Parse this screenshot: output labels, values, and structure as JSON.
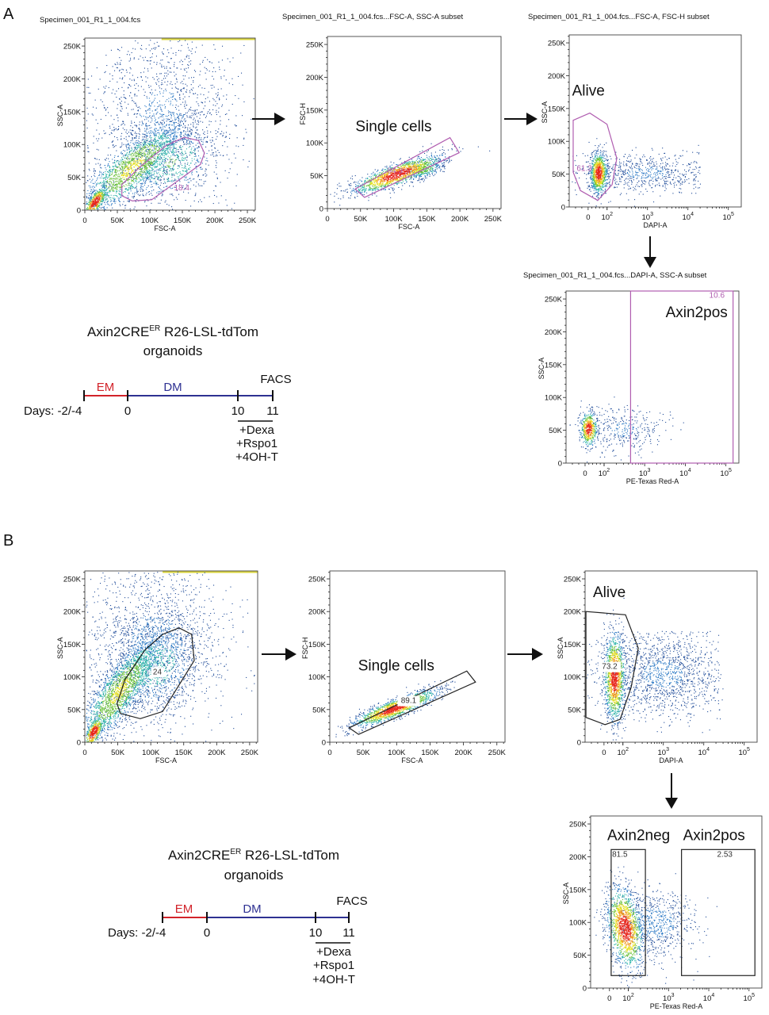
{
  "panels": [
    {
      "letter": "A",
      "protocol": {
        "title_main": "Axin2CRE",
        "title_sup": "ER",
        "title_rest": " R26-LSL-tdTom",
        "title_line2": "organoids",
        "days_label": "Days: -2/-4",
        "day0": "0",
        "day10": "10",
        "day11": "11",
        "em_label": "EM",
        "dm_label": "DM",
        "facs_label": "FACS",
        "treatments": [
          "+Dexa",
          "+Rspo1",
          "+4OH-T"
        ],
        "em_color": "#d2232a",
        "dm_color": "#2e3192"
      }
    },
    {
      "letter": "B",
      "protocol": {
        "title_main": "Axin2CRE",
        "title_sup": "ER",
        "title_rest": " R26-LSL-tdTom",
        "title_line2": "organoids",
        "days_label": "Days: -2/-4",
        "day0": "0",
        "day10": "10",
        "day11": "11",
        "em_label": "EM",
        "dm_label": "DM",
        "facs_label": "FACS",
        "treatments": [
          "+Dexa",
          "+Rspo1",
          "+4OH-T"
        ],
        "em_color": "#d2232a",
        "dm_color": "#2e3192"
      }
    }
  ],
  "chart_data": [
    {
      "id": "A1",
      "panel": "A",
      "type": "scatter",
      "title": "Specimen_001_R1_1_004.fcs",
      "xlabel": "FSC-A",
      "ylabel": "SSC-A",
      "x_scale": "linear",
      "y_scale": "linear",
      "xlim": [
        0,
        262144
      ],
      "ylim": [
        0,
        262144
      ],
      "xticks": [
        {
          "v": 0,
          "t": "0"
        },
        {
          "v": 50000,
          "t": "50K"
        },
        {
          "v": 100000,
          "t": "100K"
        },
        {
          "v": 150000,
          "t": "150K"
        },
        {
          "v": 200000,
          "t": "200K"
        },
        {
          "v": 250000,
          "t": "250K"
        }
      ],
      "yticks": [
        {
          "v": 0,
          "t": "0"
        },
        {
          "v": 50000,
          "t": "50K"
        },
        {
          "v": 100000,
          "t": "100K"
        },
        {
          "v": 150000,
          "t": "150K"
        },
        {
          "v": 200000,
          "t": "200K"
        },
        {
          "v": 250000,
          "t": "250K"
        }
      ],
      "gates": [
        {
          "name": "",
          "value": "18.4",
          "color": "#b05db0",
          "shape": "polygon",
          "points": [
            [
              57000,
              22000
            ],
            [
              73000,
              14000
            ],
            [
              103000,
              16000
            ],
            [
              178000,
              70000
            ],
            [
              184000,
              87000
            ],
            [
              175000,
              106000
            ],
            [
              153000,
              111000
            ],
            [
              126000,
              99000
            ],
            [
              85000,
              66000
            ],
            [
              57000,
              39000
            ]
          ],
          "label_at": [
            149000,
            30000
          ]
        }
      ]
    },
    {
      "id": "A2",
      "panel": "A",
      "type": "scatter",
      "title": "Specimen_001_R1_1_004.fcs...FSC-A, SSC-A  subset",
      "xlabel": "FSC-A",
      "ylabel": "FSC-H",
      "x_scale": "linear",
      "y_scale": "linear",
      "xlim": [
        0,
        262144
      ],
      "ylim": [
        0,
        262144
      ],
      "xticks": [
        {
          "v": 0,
          "t": "0"
        },
        {
          "v": 50000,
          "t": "50K"
        },
        {
          "v": 100000,
          "t": "100K"
        },
        {
          "v": 150000,
          "t": "150K"
        },
        {
          "v": 200000,
          "t": "200K"
        },
        {
          "v": 250000,
          "t": "250K"
        }
      ],
      "yticks": [
        {
          "v": 0,
          "t": "0"
        },
        {
          "v": 50000,
          "t": "50K"
        },
        {
          "v": 100000,
          "t": "100K"
        },
        {
          "v": 150000,
          "t": "150K"
        },
        {
          "v": 200000,
          "t": "200K"
        },
        {
          "v": 250000,
          "t": "250K"
        }
      ],
      "gates": [
        {
          "name": "Single cells",
          "value": "84.3",
          "color": "#b05db0",
          "shape": "polygon",
          "points": [
            [
              42000,
              30000
            ],
            [
              56000,
              17000
            ],
            [
              199000,
              85000
            ],
            [
              185000,
              108000
            ]
          ],
          "label_at": [
            102000,
            54000
          ],
          "name_at": [
            40000,
            118000
          ]
        }
      ]
    },
    {
      "id": "A3",
      "panel": "A",
      "type": "scatter",
      "title": "Specimen_001_R1_1_004.fcs...FSC-A, FSC-H  subset",
      "xlabel": "DAPI-A",
      "ylabel": "SSC-A",
      "x_scale": "biexponential",
      "y_scale": "linear",
      "xlim": [
        -300,
        150000
      ],
      "ylim": [
        0,
        262144
      ],
      "xticks": [
        {
          "v": 0,
          "t": "0"
        },
        {
          "v": 100,
          "t": "10",
          "sup": "2"
        },
        {
          "v": 1000,
          "t": "10",
          "sup": "3"
        },
        {
          "v": 10000,
          "t": "10",
          "sup": "4"
        },
        {
          "v": 100000,
          "t": "10",
          "sup": "5"
        }
      ],
      "yticks": [
        {
          "v": 0,
          "t": "0"
        },
        {
          "v": 50000,
          "t": "50K"
        },
        {
          "v": 100000,
          "t": "100K"
        },
        {
          "v": 150000,
          "t": "150K"
        },
        {
          "v": 200000,
          "t": "200K"
        },
        {
          "v": 250000,
          "t": "250K"
        }
      ],
      "gates": [
        {
          "name": "Alive",
          "value": "61.3",
          "color": "#b05db0",
          "shape": "polygon",
          "points": [
            [
              -237,
              132000
            ],
            [
              9,
              143000
            ],
            [
              100,
              126000
            ],
            [
              174,
              74000
            ],
            [
              133,
              34000
            ],
            [
              51,
              10000
            ],
            [
              -123,
              25000
            ],
            [
              -237,
              53000
            ]
          ],
          "label_at": [
            -60,
            55000
          ],
          "name_at": [
            -280,
            170000
          ]
        }
      ]
    },
    {
      "id": "A4",
      "panel": "A",
      "type": "scatter",
      "title": "Specimen_001_R1_1_004.fcs...DAPI-A, SSC-A  subset",
      "xlabel": "PE-Texas Red-A",
      "ylabel": "SSC-A",
      "x_scale": "biexponential",
      "y_scale": "linear",
      "xlim": [
        -300,
        150000
      ],
      "ylim": [
        0,
        262144
      ],
      "xticks": [
        {
          "v": 0,
          "t": "0"
        },
        {
          "v": 100,
          "t": "10",
          "sup": "2"
        },
        {
          "v": 1000,
          "t": "10",
          "sup": "3"
        },
        {
          "v": 10000,
          "t": "10",
          "sup": "4"
        },
        {
          "v": 100000,
          "t": "10",
          "sup": "5"
        }
      ],
      "yticks": [
        {
          "v": 0,
          "t": "0"
        },
        {
          "v": 50000,
          "t": "50K"
        },
        {
          "v": 100000,
          "t": "100K"
        },
        {
          "v": 150000,
          "t": "150K"
        },
        {
          "v": 200000,
          "t": "200K"
        },
        {
          "v": 250000,
          "t": "250K"
        }
      ],
      "gates": [
        {
          "name": "Axin2pos",
          "value": "10.6",
          "color": "#b05db0",
          "shape": "rect",
          "points": [
            [
              450,
              0
            ],
            [
              150000,
              262144
            ]
          ],
          "label_at": [
            60000,
            252000
          ],
          "name_at": [
            3000,
            222000
          ]
        }
      ]
    },
    {
      "id": "B1",
      "panel": "B",
      "type": "scatter",
      "title": "",
      "xlabel": "FSC-A",
      "ylabel": "SSC-A",
      "x_scale": "linear",
      "y_scale": "linear",
      "xlim": [
        0,
        262144
      ],
      "ylim": [
        0,
        262144
      ],
      "xticks": [
        {
          "v": 0,
          "t": "0"
        },
        {
          "v": 50000,
          "t": "50K"
        },
        {
          "v": 100000,
          "t": "100K"
        },
        {
          "v": 150000,
          "t": "150K"
        },
        {
          "v": 200000,
          "t": "200K"
        },
        {
          "v": 250000,
          "t": "250K"
        }
      ],
      "yticks": [
        {
          "v": 0,
          "t": "0"
        },
        {
          "v": 50000,
          "t": "50K"
        },
        {
          "v": 100000,
          "t": "100K"
        },
        {
          "v": 150000,
          "t": "150K"
        },
        {
          "v": 200000,
          "t": "200K"
        },
        {
          "v": 250000,
          "t": "250K"
        }
      ],
      "gates": [
        {
          "name": "",
          "value": "24",
          "color": "#222222",
          "shape": "polygon",
          "boxed_label": true,
          "points": [
            [
              54000,
              44000
            ],
            [
              84000,
              36000
            ],
            [
              118000,
              47000
            ],
            [
              166000,
              125000
            ],
            [
              162000,
              165000
            ],
            [
              143000,
              175000
            ],
            [
              118000,
              165000
            ],
            [
              91000,
              141000
            ],
            [
              61000,
              96000
            ],
            [
              49000,
              59000
            ]
          ],
          "label_at": [
            110000,
            104000
          ]
        }
      ]
    },
    {
      "id": "B2",
      "panel": "B",
      "type": "scatter",
      "title": "",
      "xlabel": "FSC-A",
      "ylabel": "FSC-H",
      "x_scale": "linear",
      "y_scale": "linear",
      "xlim": [
        0,
        262144
      ],
      "ylim": [
        0,
        262144
      ],
      "xticks": [
        {
          "v": 0,
          "t": "0"
        },
        {
          "v": 50000,
          "t": "50K"
        },
        {
          "v": 100000,
          "t": "100K"
        },
        {
          "v": 150000,
          "t": "150K"
        },
        {
          "v": 200000,
          "t": "200K"
        },
        {
          "v": 250000,
          "t": "250K"
        }
      ],
      "yticks": [
        {
          "v": 0,
          "t": "0"
        },
        {
          "v": 50000,
          "t": "50K"
        },
        {
          "v": 100000,
          "t": "100K"
        },
        {
          "v": 150000,
          "t": "150K"
        },
        {
          "v": 200000,
          "t": "200K"
        },
        {
          "v": 250000,
          "t": "250K"
        }
      ],
      "gates": [
        {
          "name": "Single cells",
          "value": "89.1",
          "color": "#222222",
          "shape": "polygon",
          "boxed_label": true,
          "points": [
            [
              29000,
              22000
            ],
            [
              43000,
              12000
            ],
            [
              218000,
              92000
            ],
            [
              205000,
              109000
            ]
          ],
          "label_at": [
            118000,
            60000
          ],
          "name_at": [
            40000,
            110000
          ]
        }
      ]
    },
    {
      "id": "B3",
      "panel": "B",
      "type": "scatter",
      "title": "",
      "xlabel": "DAPI-A",
      "ylabel": "SSC-A",
      "x_scale": "biexponential",
      "y_scale": "linear",
      "xlim": [
        -300,
        150000
      ],
      "ylim": [
        0,
        262144
      ],
      "xticks": [
        {
          "v": 0,
          "t": "0"
        },
        {
          "v": 100,
          "t": "10",
          "sup": "2"
        },
        {
          "v": 1000,
          "t": "10",
          "sup": "3"
        },
        {
          "v": 10000,
          "t": "10",
          "sup": "4"
        },
        {
          "v": 100000,
          "t": "10",
          "sup": "5"
        }
      ],
      "yticks": [
        {
          "v": 0,
          "t": "0"
        },
        {
          "v": 50000,
          "t": "50K"
        },
        {
          "v": 100000,
          "t": "100K"
        },
        {
          "v": 150000,
          "t": "150K"
        },
        {
          "v": 200000,
          "t": "200K"
        },
        {
          "v": 250000,
          "t": "250K"
        }
      ],
      "gates": [
        {
          "name": "Alive",
          "value": "73.2",
          "color": "#222222",
          "shape": "polygon",
          "boxed_label": true,
          "points": [
            [
              -286,
              200000
            ],
            [
              116,
              195000
            ],
            [
              240,
              144000
            ],
            [
              160,
              84000
            ],
            [
              85,
              35000
            ],
            [
              5,
              27000
            ],
            [
              -286,
              38000
            ]
          ],
          "label_at": [
            30,
            112000
          ],
          "name_at": [
            -200,
            222000
          ]
        }
      ]
    },
    {
      "id": "B4",
      "panel": "B",
      "type": "scatter",
      "title": "",
      "xlabel": "PE-Texas Red-A",
      "ylabel": "SSC-A",
      "x_scale": "biexponential",
      "y_scale": "linear",
      "xlim": [
        -300,
        150000
      ],
      "ylim": [
        0,
        262144
      ],
      "xticks": [
        {
          "v": 0,
          "t": "0"
        },
        {
          "v": 100,
          "t": "10",
          "sup": "2"
        },
        {
          "v": 1000,
          "t": "10",
          "sup": "3"
        },
        {
          "v": 10000,
          "t": "10",
          "sup": "4"
        },
        {
          "v": 100000,
          "t": "10",
          "sup": "5"
        }
      ],
      "yticks": [
        {
          "v": 0,
          "t": "0"
        },
        {
          "v": 50000,
          "t": "50K"
        },
        {
          "v": 100000,
          "t": "100K"
        },
        {
          "v": 150000,
          "t": "150K"
        },
        {
          "v": 200000,
          "t": "200K"
        },
        {
          "v": 250000,
          "t": "250K"
        }
      ],
      "gates": [
        {
          "name": "Axin2neg",
          "value": "81.5",
          "color": "#222222",
          "shape": "rect",
          "points": [
            [
              9,
              19000
            ],
            [
              266,
              211000
            ]
          ],
          "label_at": [
            55,
            200000
          ],
          "name_at": [
            -60,
            225000
          ]
        },
        {
          "name": "Axin2pos",
          "value": "2.53",
          "color": "#222222",
          "shape": "rect",
          "points": [
            [
              2100,
              19000
            ],
            [
              140000,
              211000
            ]
          ],
          "label_at": [
            25000,
            200000
          ],
          "name_at": [
            2100,
            225000
          ]
        }
      ]
    }
  ]
}
